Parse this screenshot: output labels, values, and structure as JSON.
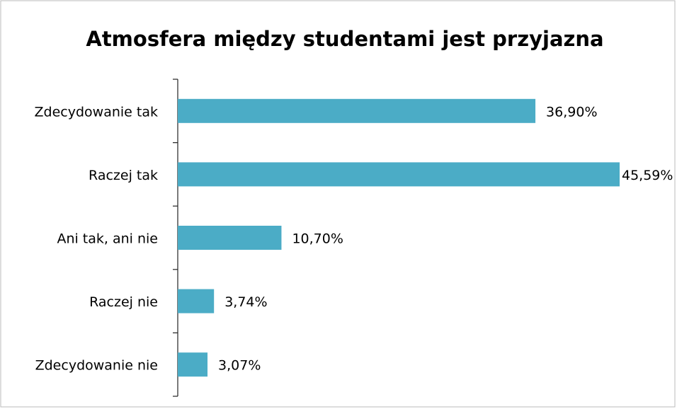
{
  "chart_data": {
    "type": "bar",
    "orientation": "horizontal",
    "title": "Atmosfera między studentami jest przyjazna",
    "categories": [
      "Zdecydowanie tak",
      "Raczej tak",
      "Ani tak, ani nie",
      "Raczej nie",
      "Zdecydowanie nie"
    ],
    "values": [
      36.9,
      45.59,
      10.7,
      3.74,
      3.07
    ],
    "value_labels": [
      "36,90%",
      "45,59%",
      "10,70%",
      "3,74%",
      "3,07%"
    ],
    "color": "#4bacc6"
  }
}
